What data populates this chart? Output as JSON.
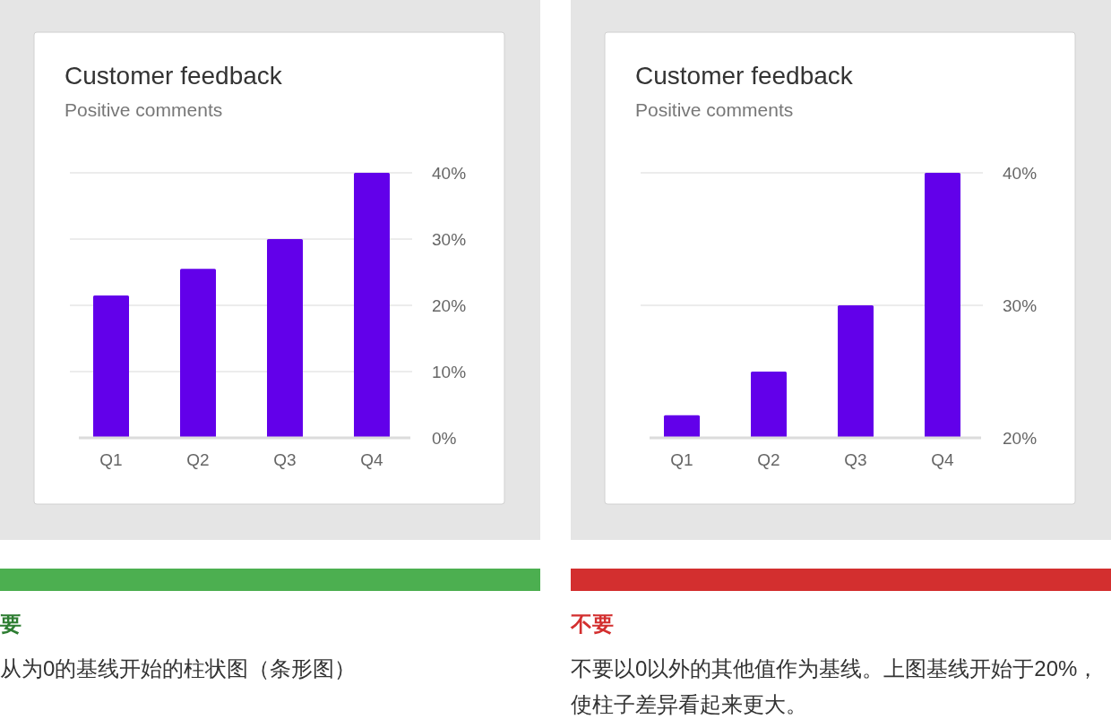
{
  "chart_data": [
    {
      "type": "bar",
      "title": "Customer feedback",
      "subtitle": "Positive comments",
      "categories": [
        "Q1",
        "Q2",
        "Q3",
        "Q4"
      ],
      "values": [
        21.5,
        25.5,
        30,
        40
      ],
      "color": "#6200ea",
      "ylim": [
        0,
        40
      ],
      "yticks": [
        {
          "value": 0,
          "label": "0%"
        },
        {
          "value": 10,
          "label": "10%"
        },
        {
          "value": 20,
          "label": "20%"
        },
        {
          "value": 30,
          "label": "30%"
        },
        {
          "value": 40,
          "label": "40%"
        }
      ],
      "grid": "y",
      "annotations": [
        "要",
        "从为0的基线开始的柱状图（条形图）"
      ]
    },
    {
      "type": "bar",
      "title": "Customer feedback",
      "subtitle": "Positive comments",
      "categories": [
        "Q1",
        "Q2",
        "Q3",
        "Q4"
      ],
      "values": [
        21.7,
        25,
        30,
        40
      ],
      "color": "#6200ea",
      "ylim": [
        20,
        40
      ],
      "yticks": [
        {
          "value": 20,
          "label": "20%"
        },
        {
          "value": 30,
          "label": "30%"
        },
        {
          "value": 40,
          "label": "40%"
        }
      ],
      "grid": "y",
      "annotations": [
        "不要",
        "不要以0以外的其他值作为基线。上图基线开始于20%，使柱子差异看起来更大。"
      ]
    }
  ]
}
